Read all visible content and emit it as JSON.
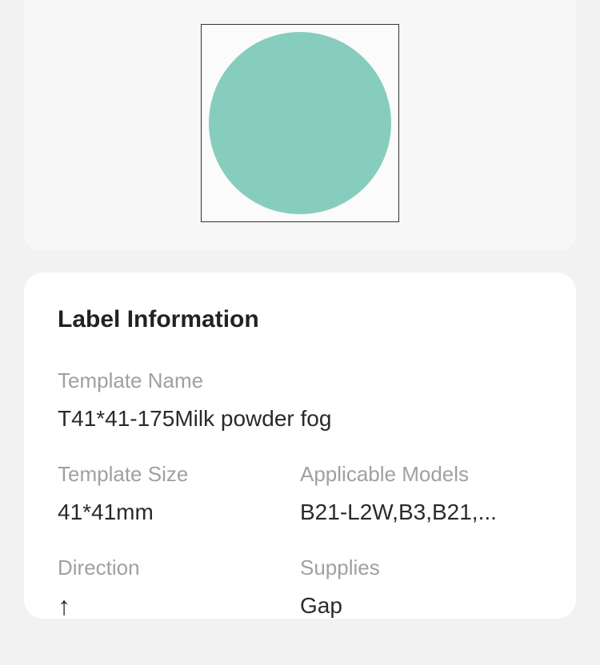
{
  "preview": {
    "circle_color": "#87cdbd",
    "frame_border_color": "#333333",
    "frame_bg_color": "#fbfbfb"
  },
  "info": {
    "section_title": "Label Information",
    "template_name": {
      "label": "Template Name",
      "value": "T41*41-175Milk powder fog"
    },
    "template_size": {
      "label": "Template Size",
      "value": "41*41mm"
    },
    "applicable_models": {
      "label": "Applicable Models",
      "value": "B21-L2W,B3,B21,..."
    },
    "direction": {
      "label": "Direction",
      "value": "↑"
    },
    "supplies": {
      "label": "Supplies",
      "value": "Gap"
    }
  }
}
